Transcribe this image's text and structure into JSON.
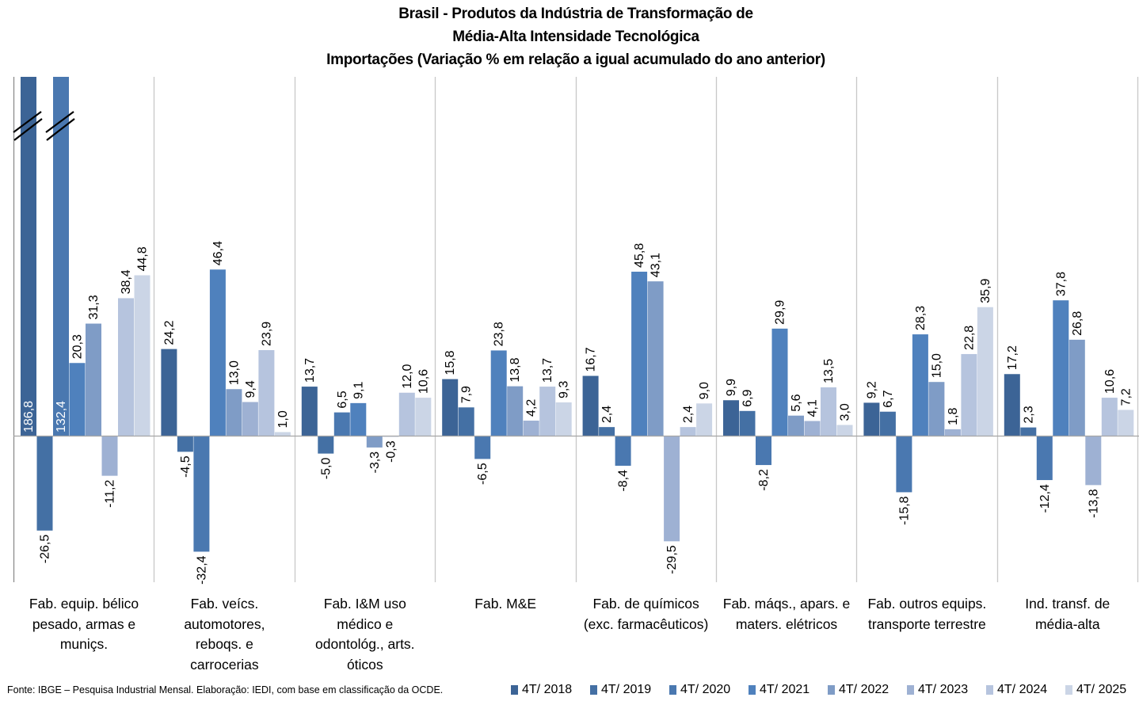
{
  "chart_data": {
    "type": "bar",
    "title": "Brasil - Produtos da Indústria de Transformação de",
    "subtitle": "Média-Alta Intensidade Tecnológica",
    "subtitle2": "Importações (Variação % em relação a igual acumulado do ano anterior)",
    "xlabel": "",
    "ylabel": "",
    "ylim": [
      -40,
      100
    ],
    "grid": false,
    "legend_position": "bottom-right",
    "axis_break": true,
    "categories": [
      "Fab. equip. bélico pesado, armas e muniçs.",
      "Fab. veícs. automotores, reboqs. e carrocerias",
      "Fab. I&M uso médico e odontológ., arts. óticos",
      "Fab. M&E",
      "Fab. de químicos (exc. farmacêuticos)",
      "Fab. máqs., apars. e maters. elétricos",
      "Fab. outros equips. transporte terrestre",
      "Ind. transf. de média-alta"
    ],
    "category_lines": [
      [
        "Fab. equip. bélico",
        "pesado, armas e",
        "muniçs."
      ],
      [
        "Fab. veícs.",
        "automotores,",
        "reboqs. e",
        "carrocerias"
      ],
      [
        "Fab. I&M uso",
        "médico e",
        "odontológ., arts.",
        "óticos"
      ],
      [
        "Fab. M&E"
      ],
      [
        "Fab. de químicos",
        "(exc. farmacêuticos)"
      ],
      [
        "Fab. máqs., apars. e",
        "maters. elétricos"
      ],
      [
        "Fab. outros equips.",
        "transporte terrestre"
      ],
      [
        "Ind. transf. de",
        "média-alta"
      ]
    ],
    "series": [
      {
        "name": "4T/ 2018",
        "color": "#3C6496",
        "values": [
          186.8,
          24.2,
          13.7,
          15.8,
          16.7,
          9.9,
          9.2,
          17.2
        ]
      },
      {
        "name": "4T/ 2019",
        "color": "#4470A4",
        "values": [
          -26.5,
          -4.5,
          -5.0,
          7.9,
          2.4,
          6.9,
          6.7,
          2.3
        ]
      },
      {
        "name": "4T/ 2020",
        "color": "#4A78B0",
        "values": [
          132.4,
          -32.4,
          6.5,
          -6.5,
          -8.4,
          -8.2,
          -15.8,
          -12.4
        ]
      },
      {
        "name": "4T/ 2021",
        "color": "#4F81BD",
        "values": [
          20.3,
          46.4,
          9.1,
          23.8,
          45.8,
          29.9,
          28.3,
          37.8
        ]
      },
      {
        "name": "4T/ 2022",
        "color": "#7F9CC6",
        "values": [
          31.3,
          13.0,
          -3.3,
          13.8,
          43.1,
          5.6,
          15.0,
          26.8
        ]
      },
      {
        "name": "4T/ 2023",
        "color": "#9EB1D3",
        "values": [
          -11.2,
          9.4,
          -0.3,
          4.2,
          -29.5,
          4.1,
          1.8,
          -13.8
        ]
      },
      {
        "name": "4T/ 2024",
        "color": "#B6C4DE",
        "values": [
          38.4,
          23.9,
          12.0,
          13.7,
          2.4,
          13.5,
          22.8,
          10.6
        ]
      },
      {
        "name": "4T/ 2025",
        "color": "#CBD5E6",
        "values": [
          44.8,
          1.0,
          10.6,
          9.3,
          9.0,
          3.0,
          35.9,
          7.2
        ]
      }
    ]
  },
  "footer": {
    "source": "Fonte: IBGE – Pesquisa Industrial Mensal. Elaboração: IEDI, com base em classificação da OCDE."
  }
}
